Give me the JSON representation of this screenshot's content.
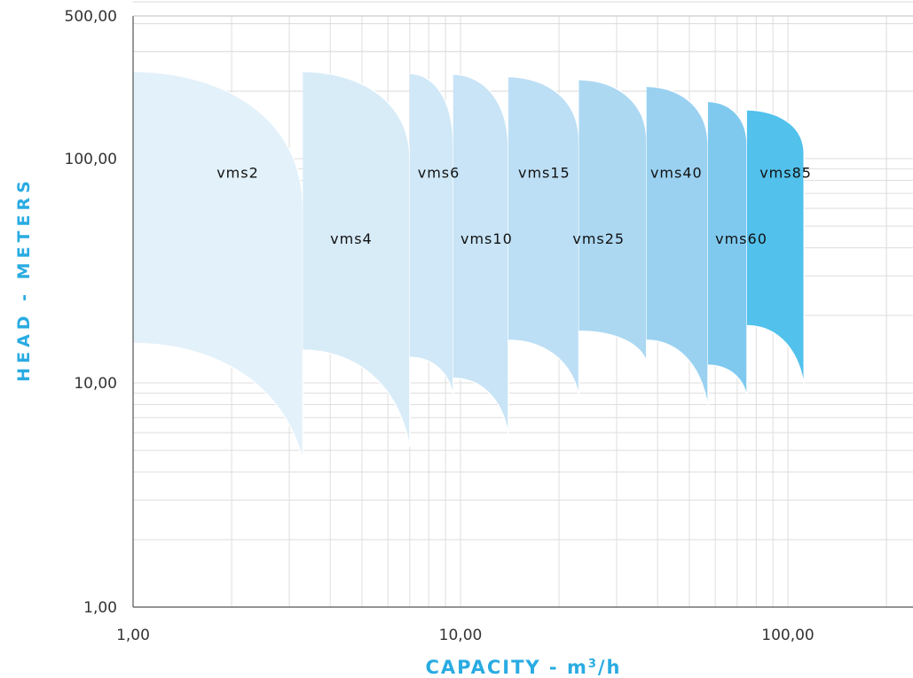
{
  "chart_data": {
    "type": "area",
    "x_scale": "log",
    "y_scale": "log",
    "xlim": [
      1,
      200
    ],
    "ylim": [
      1,
      500
    ],
    "x_ticks": [
      {
        "value": 1,
        "label": "1,00"
      },
      {
        "value": 10,
        "label": "10,00"
      },
      {
        "value": 100,
        "label": "100,00"
      }
    ],
    "y_ticks": [
      {
        "value": 1,
        "label": "1,00"
      },
      {
        "value": 10,
        "label": "10,00"
      },
      {
        "value": 100,
        "label": "100,00"
      },
      {
        "value": 500,
        "label": "500,00"
      }
    ],
    "xlabel": {
      "main": "CAPACITY - m",
      "sup": "3",
      "tail": "/h"
    },
    "ylabel": "HEAD - METERS",
    "grid": true,
    "series": [
      {
        "name": "VMS2",
        "color": "#e3f1fa",
        "x_min": 1.0,
        "x_max": 3.3,
        "h_max_top": 245,
        "h_max_bottom": 60,
        "h_min_left": 15,
        "h_min_right": 4.5,
        "label_at": [
          1.8,
          87
        ]
      },
      {
        "name": "VMS4",
        "color": "#d8ecf8",
        "x_min": 3.3,
        "x_max": 7.0,
        "h_max_top": 245,
        "h_max_bottom": 100,
        "h_min_left": 14,
        "h_min_right": 5.2,
        "label_at": [
          4.0,
          44
        ]
      },
      {
        "name": "VMS6",
        "color": "#d0e8f7",
        "x_min": 7.0,
        "x_max": 9.5,
        "h_max_top": 240,
        "h_max_bottom": 115,
        "h_min_left": 13,
        "h_min_right": 8.8,
        "label_at": [
          7.4,
          87
        ]
      },
      {
        "name": "VMS10",
        "color": "#c8e4f6",
        "x_min": 9.5,
        "x_max": 14.0,
        "h_max_top": 238,
        "h_max_bottom": 110,
        "h_min_left": 10.5,
        "h_min_right": 5.9,
        "label_at": [
          10.0,
          44
        ]
      },
      {
        "name": "VMS15",
        "color": "#bddff5",
        "x_min": 14.0,
        "x_max": 23.0,
        "h_max_top": 232,
        "h_max_bottom": 120,
        "h_min_left": 15.5,
        "h_min_right": 8.8,
        "label_at": [
          15.0,
          87
        ]
      },
      {
        "name": "VMS25",
        "color": "#acd8f2",
        "x_min": 23.0,
        "x_max": 37.0,
        "h_max_top": 225,
        "h_max_bottom": 120,
        "h_min_left": 17,
        "h_min_right": 12.5,
        "label_at": [
          22.0,
          44
        ]
      },
      {
        "name": "VMS40",
        "color": "#9ad1f1",
        "x_min": 37.0,
        "x_max": 57.0,
        "h_max_top": 210,
        "h_max_bottom": 115,
        "h_min_left": 15.5,
        "h_min_right": 7.8,
        "label_at": [
          38.0,
          87
        ]
      },
      {
        "name": "VMS60",
        "color": "#7fc9ef",
        "x_min": 57.0,
        "x_max": 75.0,
        "h_max_top": 180,
        "h_max_bottom": 115,
        "h_min_left": 12,
        "h_min_right": 8.7,
        "label_at": [
          60.0,
          44
        ]
      },
      {
        "name": "VMS85",
        "color": "#52c1ec",
        "x_min": 75.0,
        "x_max": 112.0,
        "h_max_top": 165,
        "h_max_bottom": 105,
        "h_min_left": 18,
        "h_min_right": 9.8,
        "label_at": [
          82.0,
          87
        ]
      }
    ]
  }
}
